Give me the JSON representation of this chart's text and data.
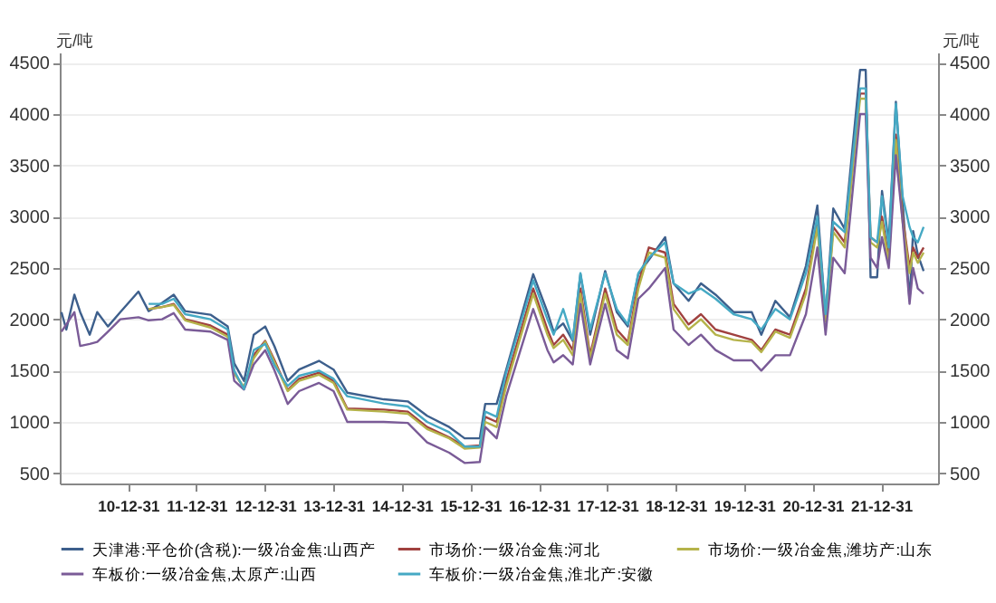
{
  "chart_data": {
    "type": "line",
    "ylabel": "元/吨",
    "y2label": "元/吨",
    "x": [
      "2010-01-10",
      "2010-02-05",
      "2010-03-20",
      "2010-04-20",
      "2010-06-10",
      "2010-07-20",
      "2010-09-15",
      "2010-11-20",
      "2011-02-25",
      "2011-04-20",
      "2011-07-01",
      "2011-09-01",
      "2011-11-01",
      "2012-03-15",
      "2012-06-15",
      "2012-07-20",
      "2012-09-10",
      "2012-11-01",
      "2013-01-01",
      "2013-02-20",
      "2013-05-01",
      "2013-07-01",
      "2013-10-15",
      "2014-01-01",
      "2014-03-15",
      "2014-09-25",
      "2015-02-01",
      "2015-05-15",
      "2015-09-10",
      "2015-12-01",
      "2016-02-20",
      "2016-03-20",
      "2016-05-20",
      "2016-07-10",
      "2016-12-01",
      "2017-02-15",
      "2017-03-20",
      "2017-05-10",
      "2017-06-30",
      "2017-08-10",
      "2017-10-01",
      "2017-12-20",
      "2018-02-20",
      "2018-04-20",
      "2018-06-15",
      "2018-08-10",
      "2018-11-05",
      "2018-12-20",
      "2019-03-10",
      "2019-05-15",
      "2019-08-01",
      "2019-11-05",
      "2020-02-10",
      "2020-04-01",
      "2020-06-15",
      "2020-09-01",
      "2020-11-25",
      "2021-01-25",
      "2021-03-10",
      "2021-04-20",
      "2021-06-20",
      "2021-09-10",
      "2021-10-10",
      "2021-11-05",
      "2021-12-10",
      "2022-01-05",
      "2022-02-10",
      "2022-03-20",
      "2022-04-25",
      "2022-06-01",
      "2022-06-20",
      "2022-07-15",
      "2022-08-15"
    ],
    "series": [
      {
        "name": "天津港:平仓价(含税):一级冶金焦:山西产",
        "color": "#3d5f8c",
        "values": [
          2070,
          1900,
          2240,
          2070,
          1850,
          2070,
          1930,
          2070,
          2270,
          2080,
          2160,
          2240,
          2080,
          2045,
          1930,
          1570,
          1400,
          1850,
          1930,
          1735,
          1400,
          1510,
          1595,
          1510,
          1285,
          1220,
          1200,
          1060,
          950,
          840,
          840,
          1175,
          1175,
          1510,
          2440,
          2070,
          1880,
          1960,
          1790,
          2440,
          1850,
          2470,
          2070,
          1930,
          2440,
          2580,
          2800,
          2350,
          2180,
          2350,
          2240,
          2070,
          2070,
          1850,
          2180,
          2020,
          2520,
          3110,
          2020,
          3080,
          2880,
          4430,
          4430,
          2410,
          2410,
          3250,
          2750,
          4120,
          3140,
          2180,
          2860,
          2630,
          2470
        ]
      },
      {
        "name": "市场价:一级冶金焦:河北",
        "color": "#a0413f",
        "x": [
          "2011-04-20",
          "2011-07-01",
          "2011-09-01",
          "2011-11-01",
          "2012-03-15",
          "2012-06-15",
          "2012-07-20",
          "2012-09-10",
          "2012-11-01",
          "2013-01-01",
          "2013-02-20",
          "2013-05-01",
          "2013-07-01",
          "2013-10-15",
          "2014-01-01",
          "2014-03-15",
          "2014-09-25",
          "2015-02-01",
          "2015-05-15",
          "2015-09-10",
          "2015-12-01",
          "2016-02-20",
          "2016-03-20",
          "2016-05-20",
          "2016-07-10",
          "2016-12-01",
          "2017-02-15",
          "2017-03-20",
          "2017-05-10",
          "2017-06-30",
          "2017-08-10",
          "2017-10-01",
          "2017-12-20",
          "2018-02-20",
          "2018-04-20",
          "2018-06-15",
          "2018-08-10",
          "2018-11-05",
          "2018-12-20",
          "2019-03-10",
          "2019-05-15",
          "2019-08-01",
          "2019-11-05",
          "2020-02-10",
          "2020-04-01",
          "2020-06-15",
          "2020-09-01",
          "2020-11-25",
          "2021-01-25",
          "2021-03-10",
          "2021-04-20",
          "2021-06-20",
          "2021-09-10",
          "2021-10-10",
          "2021-11-05",
          "2021-12-10",
          "2022-01-05",
          "2022-02-10",
          "2022-03-20",
          "2022-04-25",
          "2022-06-01",
          "2022-06-20",
          "2022-07-15",
          "2022-08-15"
        ],
        "values": [
          2100,
          2120,
          2150,
          2000,
          1940,
          1850,
          1480,
          1330,
          1650,
          1790,
          1600,
          1310,
          1420,
          1480,
          1400,
          1130,
          1120,
          1100,
          950,
          850,
          760,
          770,
          1050,
          1000,
          1400,
          2300,
          1900,
          1750,
          1850,
          1700,
          2300,
          1650,
          2300,
          1900,
          1780,
          2350,
          2700,
          2650,
          2150,
          1950,
          2050,
          1900,
          1850,
          1800,
          1700,
          1900,
          1850,
          2300,
          2950,
          2000,
          2900,
          2750,
          4200,
          4200,
          2800,
          2750,
          3000,
          2600,
          3800,
          3000,
          2500,
          2700,
          2600,
          2700
        ]
      },
      {
        "name": "市场价:一级冶金焦,潍坊产:山东",
        "color": "#b5b34a",
        "x": [
          "2011-04-20",
          "2011-07-01",
          "2011-09-01",
          "2011-11-01",
          "2012-03-15",
          "2012-06-15",
          "2012-07-20",
          "2012-09-10",
          "2012-11-01",
          "2013-01-01",
          "2013-02-20",
          "2013-05-01",
          "2013-07-01",
          "2013-10-15",
          "2014-01-01",
          "2014-03-15",
          "2014-09-25",
          "2015-02-01",
          "2015-05-15",
          "2015-09-10",
          "2015-12-01",
          "2016-02-20",
          "2016-03-20",
          "2016-05-20",
          "2016-07-10",
          "2016-12-01",
          "2017-02-15",
          "2017-03-20",
          "2017-05-10",
          "2017-06-30",
          "2017-08-10",
          "2017-10-01",
          "2017-12-20",
          "2018-02-20",
          "2018-04-20",
          "2018-06-15",
          "2018-08-10",
          "2018-11-05",
          "2018-12-20",
          "2019-03-10",
          "2019-05-15",
          "2019-08-01",
          "2019-11-05",
          "2020-02-10",
          "2020-04-01",
          "2020-06-15",
          "2020-09-01",
          "2020-11-25",
          "2021-01-25",
          "2021-03-10",
          "2021-04-20",
          "2021-06-20",
          "2021-09-10",
          "2021-10-10",
          "2021-11-05",
          "2021-12-10",
          "2022-01-05",
          "2022-02-10",
          "2022-03-20",
          "2022-04-25",
          "2022-06-01",
          "2022-06-20",
          "2022-07-15",
          "2022-08-15"
        ],
        "values": [
          2100,
          2120,
          2140,
          1990,
          1920,
          1830,
          1470,
          1340,
          1620,
          1780,
          1580,
          1300,
          1400,
          1460,
          1380,
          1120,
          1100,
          1080,
          930,
          840,
          740,
          750,
          1000,
          950,
          1350,
          2250,
          1850,
          1720,
          1800,
          1650,
          2250,
          1620,
          2250,
          1850,
          1750,
          2300,
          2650,
          2600,
          2100,
          1900,
          2000,
          1850,
          1800,
          1780,
          1680,
          1880,
          1820,
          2250,
          2900,
          1980,
          2850,
          2700,
          4150,
          4150,
          2750,
          2700,
          2950,
          2550,
          3750,
          2950,
          2450,
          2650,
          2550,
          2650
        ]
      },
      {
        "name": "车板价:一级冶金焦,太原产:山西",
        "color": "#7a5b97",
        "values": [
          1880,
          1950,
          2070,
          1740,
          1760,
          1780,
          1880,
          2000,
          2020,
          1990,
          2000,
          2060,
          1900,
          1880,
          1800,
          1400,
          1315,
          1560,
          1700,
          1500,
          1175,
          1300,
          1380,
          1300,
          1000,
          1000,
          990,
          800,
          700,
          600,
          610,
          950,
          840,
          1250,
          2100,
          1700,
          1580,
          1650,
          1560,
          2150,
          1560,
          2150,
          1700,
          1620,
          2200,
          2300,
          2500,
          1900,
          1750,
          1850,
          1700,
          1600,
          1600,
          1500,
          1650,
          1650,
          2050,
          2700,
          1850,
          2600,
          2450,
          4000,
          4000,
          2600,
          2500,
          2800,
          2500,
          3600,
          2950,
          2150,
          2500,
          2300,
          2250
        ]
      },
      {
        "name": "车板价:一级冶金焦,淮北产:安徽",
        "color": "#45a9c4",
        "x": [
          "2011-04-20",
          "2011-07-01",
          "2011-09-01",
          "2011-11-01",
          "2012-03-15",
          "2012-06-15",
          "2012-07-20",
          "2012-09-10",
          "2012-11-01",
          "2013-01-01",
          "2013-02-20",
          "2013-05-01",
          "2013-07-01",
          "2013-10-15",
          "2014-01-01",
          "2014-03-15",
          "2014-09-25",
          "2015-02-01",
          "2015-05-15",
          "2015-09-10",
          "2015-12-01",
          "2016-02-20",
          "2016-03-20",
          "2016-05-20",
          "2016-07-10",
          "2016-12-01",
          "2017-02-15",
          "2017-03-20",
          "2017-05-10",
          "2017-06-30",
          "2017-08-10",
          "2017-10-01",
          "2017-12-20",
          "2018-02-20",
          "2018-04-20",
          "2018-06-15",
          "2018-08-10",
          "2018-11-05",
          "2018-12-20",
          "2019-03-10",
          "2019-05-15",
          "2019-08-01",
          "2019-11-05",
          "2020-02-10",
          "2020-04-01",
          "2020-06-15",
          "2020-09-01",
          "2020-11-25",
          "2021-01-25",
          "2021-03-10",
          "2021-04-20",
          "2021-06-20",
          "2021-09-10",
          "2021-10-10",
          "2021-11-05",
          "2021-12-10",
          "2022-01-05",
          "2022-02-10",
          "2022-03-20",
          "2022-04-25",
          "2022-06-01",
          "2022-06-20",
          "2022-07-15",
          "2022-08-15"
        ],
        "values": [
          2150,
          2150,
          2200,
          2050,
          2000,
          1900,
          1500,
          1320,
          1700,
          1760,
          1550,
          1350,
          1450,
          1500,
          1420,
          1250,
          1180,
          1150,
          1000,
          900,
          760,
          760,
          1100,
          1050,
          1480,
          2380,
          2000,
          1850,
          2100,
          1800,
          2450,
          1900,
          2450,
          2100,
          1950,
          2450,
          2600,
          2750,
          2350,
          2250,
          2300,
          2200,
          2050,
          2000,
          1900,
          2100,
          2000,
          2450,
          3000,
          2050,
          2950,
          2850,
          4250,
          4250,
          2800,
          2750,
          3200,
          2700,
          4100,
          3200,
          2900,
          2800,
          2750,
          2900
        ]
      }
    ],
    "xlim": [
      "2010-01-01",
      "2022-10-31"
    ],
    "xticks": [
      {
        "value": "2010-12-31",
        "label": "10-12-31"
      },
      {
        "value": "2011-12-31",
        "label": "11-12-31"
      },
      {
        "value": "2012-12-31",
        "label": "12-12-31"
      },
      {
        "value": "2013-12-31",
        "label": "13-12-31"
      },
      {
        "value": "2014-12-31",
        "label": "14-12-31"
      },
      {
        "value": "2015-12-31",
        "label": "15-12-31"
      },
      {
        "value": "2016-12-31",
        "label": "16-12-31"
      },
      {
        "value": "2017-12-31",
        "label": "17-12-31"
      },
      {
        "value": "2018-12-31",
        "label": "18-12-31"
      },
      {
        "value": "2019-12-31",
        "label": "19-12-31"
      },
      {
        "value": "2020-12-31",
        "label": "20-12-31"
      },
      {
        "value": "2021-12-31",
        "label": "21-12-31"
      }
    ],
    "ylim": [
      400,
      4600
    ],
    "yticks": [
      500,
      1000,
      1500,
      2000,
      2500,
      3000,
      3500,
      4000,
      4500
    ],
    "y2lim": [
      400,
      4600
    ],
    "y2ticks": [
      500,
      1000,
      1500,
      2000,
      2500,
      3000,
      3500,
      4000,
      4500
    ],
    "grid": "y",
    "legend": "bottom"
  }
}
